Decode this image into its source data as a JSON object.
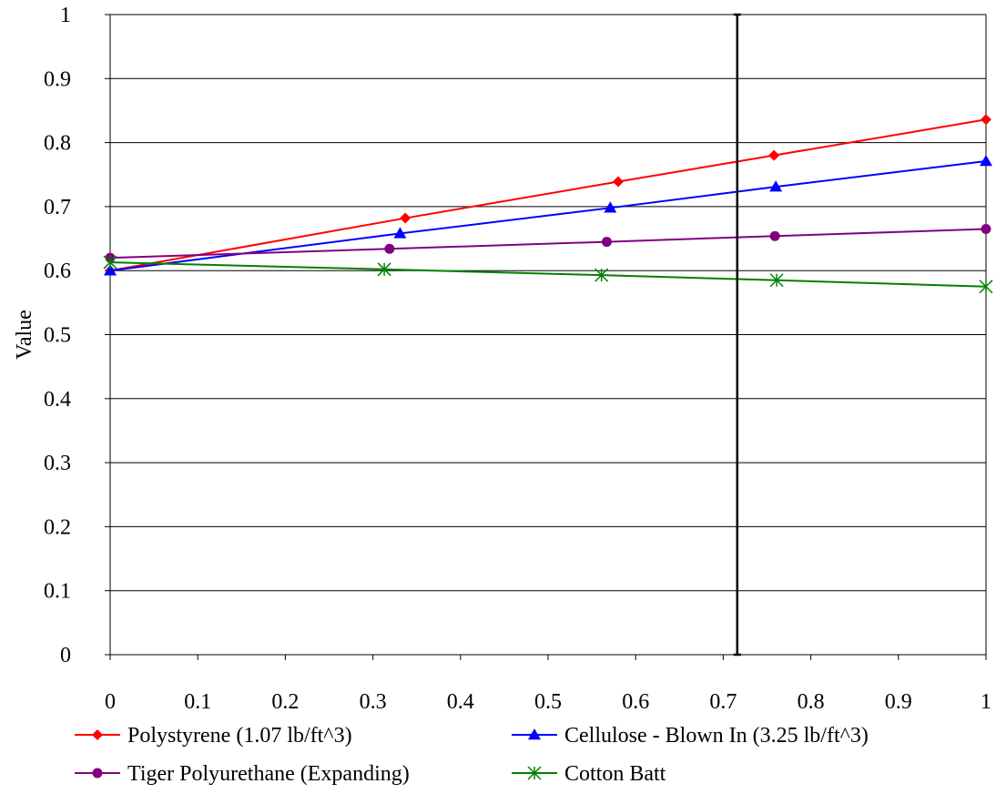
{
  "chart_data": {
    "type": "line",
    "title": "",
    "xlabel": "",
    "ylabel": "Value",
    "xlim": [
      0,
      1
    ],
    "ylim": [
      0,
      1
    ],
    "x_ticks": [
      0,
      0.1,
      0.2,
      0.3,
      0.4,
      0.5,
      0.6,
      0.7,
      0.8,
      0.9,
      1
    ],
    "x_tick_labels": [
      "0",
      "0.1",
      "0.2",
      "0.3",
      "0.4",
      "0.5",
      "0.6",
      "0.7",
      "0.8",
      "0.9",
      "1"
    ],
    "y_ticks": [
      0,
      0.1,
      0.2,
      0.3,
      0.4,
      0.5,
      0.6,
      0.7,
      0.8,
      0.9,
      1
    ],
    "y_tick_labels": [
      "0",
      "0.1",
      "0.2",
      "0.3",
      "0.4",
      "0.5",
      "0.6",
      "0.7",
      "0.8",
      "0.9",
      "1"
    ],
    "grid": "horizontal",
    "legend_position": "bottom",
    "vertical_marker": {
      "x": 0.716,
      "y_range": [
        0,
        1
      ],
      "color": "#000000"
    },
    "series": [
      {
        "name": "Polystyrene (1.07 lb/ft^3)",
        "color": "#ff0000",
        "marker": "diamond",
        "points": [
          [
            0,
            0.6
          ],
          [
            0.337,
            0.682
          ],
          [
            0.58,
            0.739
          ],
          [
            0.758,
            0.78
          ],
          [
            1,
            0.836
          ]
        ]
      },
      {
        "name": "Cellulose - Blown In (3.25 lb/ft^3)",
        "color": "#0000ff",
        "marker": "triangle",
        "points": [
          [
            0,
            0.6
          ],
          [
            0.331,
            0.658
          ],
          [
            0.571,
            0.698
          ],
          [
            0.76,
            0.731
          ],
          [
            1,
            0.771
          ]
        ]
      },
      {
        "name": "Tiger Polyurethane (Expanding)",
        "color": "#800080",
        "marker": "circle",
        "points": [
          [
            0,
            0.62
          ],
          [
            0.319,
            0.634
          ],
          [
            0.567,
            0.645
          ],
          [
            0.759,
            0.654
          ],
          [
            1,
            0.665
          ]
        ]
      },
      {
        "name": "Cotton Batt",
        "color": "#008000",
        "marker": "asterisk",
        "points": [
          [
            0,
            0.613
          ],
          [
            0.313,
            0.602
          ],
          [
            0.561,
            0.593
          ],
          [
            0.761,
            0.585
          ],
          [
            1,
            0.575
          ]
        ]
      }
    ]
  }
}
